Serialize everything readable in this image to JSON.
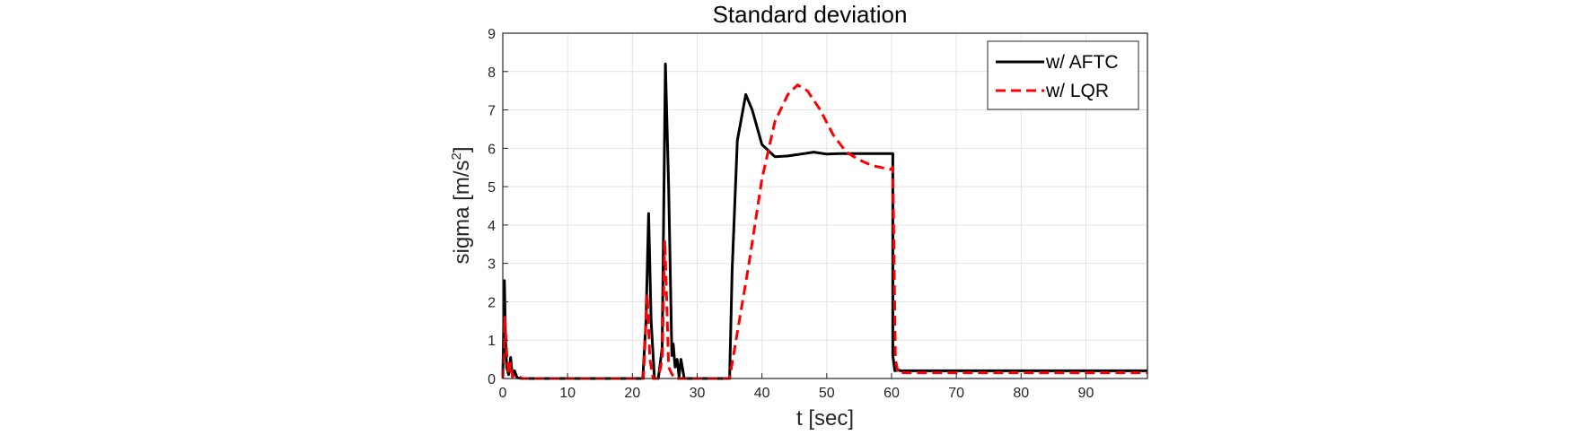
{
  "chart_data": {
    "type": "line",
    "title": "Standard deviation",
    "xlabel": "t [sec]",
    "ylabel": "sigma [m/s",
    "ylabel_superscript": "2",
    "ylabel_suffix": "]",
    "xlim": [
      0,
      99.5
    ],
    "ylim": [
      0,
      9
    ],
    "xticks": [
      0,
      10,
      20,
      30,
      40,
      50,
      60,
      70,
      80,
      90
    ],
    "yticks": [
      0,
      1,
      2,
      3,
      4,
      5,
      6,
      7,
      8,
      9
    ],
    "grid": true,
    "legend_position": "top-right",
    "series": [
      {
        "name": "w/ AFTC",
        "color": "#000000",
        "dash": "solid",
        "x": [
          0,
          0.25,
          0.4,
          0.6,
          0.9,
          1.2,
          1.5,
          1.8,
          2.2,
          3,
          10,
          21.6,
          22.1,
          22.5,
          22.9,
          23.4,
          24,
          24.6,
          25.1,
          25.6,
          26.1,
          26.3,
          26.6,
          26.9,
          27.2,
          27.5,
          28,
          35,
          35.4,
          36.2,
          37.5,
          38.5,
          40,
          42,
          44,
          46,
          48,
          50,
          52,
          54,
          56,
          58,
          60.2,
          60.2,
          60.5,
          61,
          61.5,
          70,
          80,
          90,
          99.5
        ],
        "y": [
          0,
          2.55,
          1.1,
          0.3,
          0.1,
          0.55,
          0.05,
          0.2,
          0.02,
          0,
          0,
          0,
          1.5,
          4.3,
          1.5,
          0,
          0,
          0.8,
          8.2,
          5.0,
          0.6,
          0.9,
          0.3,
          0.5,
          0.05,
          0.5,
          0,
          0,
          2.8,
          6.2,
          7.4,
          7.0,
          6.1,
          5.78,
          5.8,
          5.85,
          5.9,
          5.85,
          5.86,
          5.86,
          5.86,
          5.86,
          5.86,
          0.6,
          0.2,
          0.22,
          0.2,
          0.2,
          0.2,
          0.2,
          0.2
        ]
      },
      {
        "name": "w/ LQR",
        "color": "#ff0000",
        "dash": "dashed",
        "x": [
          0,
          0.3,
          0.6,
          0.9,
          1.2,
          1.5,
          2,
          3,
          10,
          21.7,
          22.3,
          22.7,
          23.2,
          24,
          24.6,
          25.0,
          25.3,
          25.6,
          26.0,
          26.5,
          27.5,
          35,
          36,
          38,
          40,
          42,
          44,
          45.5,
          47,
          49,
          51,
          53,
          55,
          57,
          59.8,
          60.2,
          60.6,
          61,
          70,
          80,
          90,
          99.5
        ],
        "y": [
          0,
          1.6,
          0.7,
          0.1,
          0.4,
          0.05,
          0.1,
          0,
          0,
          0,
          2.2,
          0.5,
          0,
          0,
          0.5,
          3.6,
          2.0,
          0.3,
          0.15,
          0,
          0,
          0,
          1.0,
          3.0,
          5.2,
          6.7,
          7.4,
          7.65,
          7.5,
          7.0,
          6.35,
          5.9,
          5.7,
          5.55,
          5.45,
          5.5,
          0.5,
          0.15,
          0.15,
          0.15,
          0.15,
          0.15
        ]
      }
    ]
  }
}
